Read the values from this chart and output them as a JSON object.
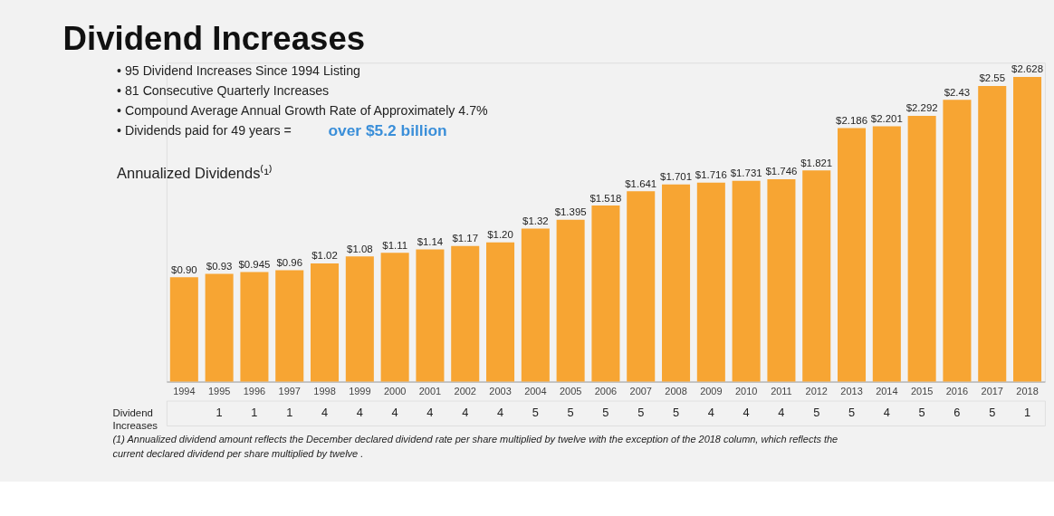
{
  "chart_data": [
    {
      "type": "bar",
      "title": "Dividend Increases",
      "subtitle": "Annualized Dividends⁽¹⁾",
      "categories": [
        "1994",
        "1995",
        "1996",
        "1997",
        "1998",
        "1999",
        "2000",
        "2001",
        "2002",
        "2003",
        "2004",
        "2005",
        "2006",
        "2007",
        "2008",
        "2009",
        "2010",
        "2011",
        "2012",
        "2013",
        "2014",
        "2015",
        "2016",
        "2017",
        "2018"
      ],
      "values": [
        0.9,
        0.93,
        0.945,
        0.96,
        1.02,
        1.08,
        1.11,
        1.14,
        1.17,
        1.2,
        1.32,
        1.395,
        1.518,
        1.641,
        1.701,
        1.716,
        1.731,
        1.746,
        1.821,
        2.186,
        2.201,
        2.292,
        2.43,
        2.55,
        2.628
      ],
      "value_labels": [
        "$0.90",
        "$0.93",
        "$0.945",
        "$0.96",
        "$1.02",
        "$1.08",
        "$1.11",
        "$1.14",
        "$1.17",
        "$1.20",
        "$1.32",
        "$1.395",
        "$1.518",
        "$1.641",
        "$1.701",
        "$1.716",
        "$1.731",
        "$1.746",
        "$1.821",
        "$2.186",
        "$2.201",
        "$2.292",
        "$2.43",
        "$2.55",
        "$2.628"
      ],
      "color": "#f7a533",
      "ylim": [
        0,
        2.75
      ],
      "tick_labels": "x",
      "grid": false,
      "annotations": [
        "• 95 Dividend Increases Since 1994 Listing",
        "• 81 Consecutive Quarterly Increases",
        "• Compound Average Annual Growth Rate of Approximately 4.7%",
        "• Dividends paid for 49 years =",
        "over $5.2 billion"
      ]
    },
    {
      "type": "other",
      "ylabel": "Dividend Increases",
      "values": [
        null,
        1,
        1,
        1,
        4,
        4,
        4,
        4,
        4,
        4,
        5,
        5,
        5,
        5,
        5,
        4,
        4,
        4,
        5,
        5,
        4,
        5,
        6,
        5,
        1
      ],
      "data_labels": true,
      "annotations": [
        "(1) Annualized dividend amount reflects the December declared dividend rate per share multiplied by twelve with the exception of the 2018 column, which reflects the current declared dividend per share multiplied by twelve ."
      ]
    }
  ]
}
